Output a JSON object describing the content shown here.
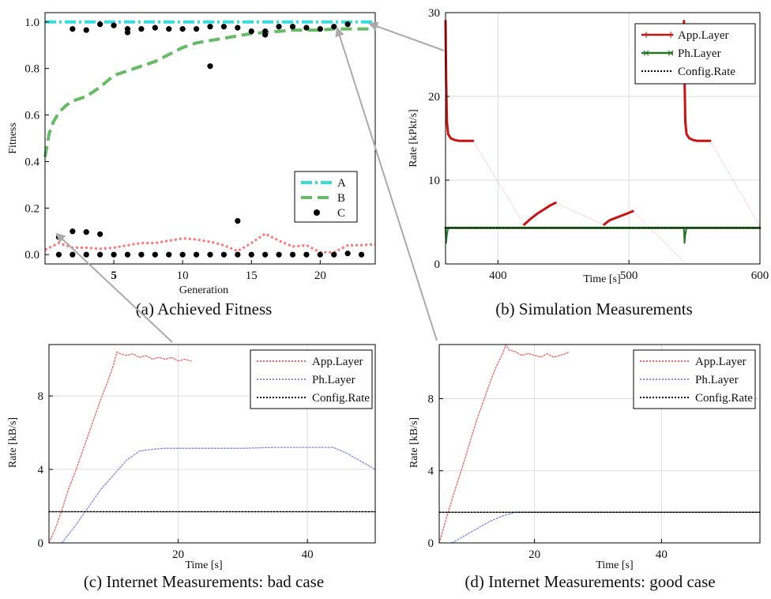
{
  "panels": [
    {
      "caption": "(a) Achieved Fitness",
      "xlabel": "Generation",
      "ylabel": "Fitness",
      "x_ticks": [
        "5",
        "10",
        "15",
        "20"
      ],
      "y_ticks": [
        "0.0",
        "0.2",
        "0.4",
        "0.6",
        "0.8",
        "1.0"
      ],
      "legend": [
        "A",
        "B",
        "C"
      ]
    },
    {
      "caption": "(b) Simulation Measurements",
      "xlabel": "Time [s]",
      "ylabel": "Rate [kPkt/s]",
      "x_ticks": [
        "400",
        "500",
        "600"
      ],
      "y_ticks": [
        "0",
        "10",
        "20",
        "30"
      ],
      "legend": [
        "App.Layer",
        "Ph.Layer",
        "Config.Rate"
      ]
    },
    {
      "caption": "(c) Internet Measurements: bad case",
      "xlabel": "Time [s]",
      "ylabel": "Rate [kB/s]",
      "x_ticks": [
        "20",
        "40"
      ],
      "y_ticks": [
        "0",
        "4",
        "8"
      ],
      "legend": [
        "App.Layer",
        "Ph.Layer",
        "Config.Rate"
      ]
    },
    {
      "caption": "(d) Internet Measurements: good case",
      "xlabel": "Time [s]",
      "ylabel": "Rate [kB/s]",
      "x_ticks": [
        "20",
        "40"
      ],
      "y_ticks": [
        "0",
        "4",
        "8"
      ],
      "legend": [
        "App.Layer",
        "Ph.Layer",
        "Config.Rate"
      ]
    }
  ],
  "colors": {
    "cyan": "#33dddd",
    "green": "#66bb66",
    "black": "#000000",
    "pink": "#ff7777",
    "red": "#cc1111",
    "darkgreen": "#227722",
    "salmon": "#ee6666",
    "blue": "#8888ee",
    "arrow": "#aaaaaa",
    "grid": "#dddddd",
    "tick5": "#777700"
  },
  "chart_data": [
    {
      "type": "line",
      "xlim": [
        0,
        24
      ],
      "ylim": [
        -0.04,
        1.04
      ],
      "series": [
        {
          "name": "A",
          "style": "dash-dot",
          "color": "cyan",
          "x": [
            0,
            24
          ],
          "y": [
            1.0,
            1.0
          ]
        },
        {
          "name": "B",
          "style": "dashed",
          "color": "green",
          "x": [
            0,
            0.3,
            0.6,
            1,
            1.5,
            2,
            3,
            4,
            5,
            6,
            7,
            8,
            9,
            10,
            11,
            12,
            13,
            14,
            15,
            16,
            17,
            18,
            19,
            20,
            21,
            22,
            23,
            24
          ],
          "y": [
            0.42,
            0.52,
            0.57,
            0.61,
            0.64,
            0.66,
            0.68,
            0.72,
            0.77,
            0.79,
            0.81,
            0.83,
            0.86,
            0.89,
            0.91,
            0.92,
            0.93,
            0.94,
            0.95,
            0.955,
            0.96,
            0.965,
            0.965,
            0.965,
            0.97,
            0.97,
            0.97,
            0.97
          ]
        },
        {
          "name": "",
          "style": "dotted",
          "color": "pink",
          "x": [
            0,
            1,
            2,
            3,
            4,
            5,
            6,
            7,
            8,
            9,
            10,
            11,
            12,
            13,
            14,
            15,
            16,
            17,
            18,
            19,
            20,
            21,
            22,
            23,
            24
          ],
          "y": [
            0.02,
            0.05,
            0.03,
            0.03,
            0.025,
            0.03,
            0.04,
            0.05,
            0.05,
            0.06,
            0.07,
            0.065,
            0.055,
            0.04,
            0.015,
            0.05,
            0.09,
            0.06,
            0.035,
            0.04,
            0.01,
            0.01,
            0.04,
            0.04,
            0.045
          ]
        },
        {
          "name": "C",
          "style": "markers",
          "color": "black",
          "x": [
            1,
            2,
            3,
            4,
            2,
            3,
            4,
            5,
            6,
            7,
            8,
            9,
            10,
            11,
            12,
            13,
            14,
            15,
            16,
            17,
            18,
            19,
            20,
            21,
            22,
            1,
            2,
            3,
            4,
            5,
            6,
            7,
            8,
            9,
            10,
            11,
            12,
            13,
            14,
            15,
            16,
            17,
            18,
            19,
            20,
            21,
            22,
            23,
            6,
            12,
            14,
            16
          ],
          "y": [
            0.075,
            0.1,
            0.097,
            0.088,
            0.97,
            0.965,
            0.99,
            0.985,
            0.97,
            0.97,
            0.975,
            0.97,
            0.97,
            0.97,
            0.98,
            0.98,
            0.975,
            0.96,
            0.96,
            0.98,
            0.98,
            0.975,
            0.97,
            0.98,
            0.99,
            0.0,
            0.0,
            0.0,
            0.0,
            0.0,
            0.0,
            0.0,
            0.0,
            0.0,
            0.0,
            0.0,
            0.0,
            0.0,
            0.0,
            0.0,
            0.0,
            0.0,
            0.0,
            0.0,
            0.0,
            0.0,
            0.005,
            0.0,
            0.955,
            0.81,
            0.145,
            0.945
          ]
        }
      ]
    },
    {
      "type": "line",
      "xlim": [
        360,
        600
      ],
      "ylim": [
        0,
        30
      ],
      "series": [
        {
          "name": "App.Layer",
          "color": "red",
          "width": 3,
          "x": [
            360,
            360.5,
            361,
            362,
            364,
            367,
            370,
            375,
            381
          ],
          "y": [
            29,
            22,
            17,
            15.5,
            15,
            14.8,
            14.7,
            14.7,
            14.7
          ]
        },
        {
          "name": "",
          "color": "red",
          "width": 3,
          "x": [
            420,
            425,
            430,
            435,
            440,
            444
          ],
          "y": [
            4.7,
            5.4,
            6,
            6.5,
            7,
            7.3
          ]
        },
        {
          "name": "",
          "color": "red",
          "width": 3,
          "x": [
            481,
            485,
            490,
            495,
            500,
            503
          ],
          "y": [
            4.7,
            5.2,
            5.5,
            5.8,
            6.1,
            6.3
          ]
        },
        {
          "name": "",
          "color": "red",
          "width": 3,
          "x": [
            542,
            542.5,
            543,
            544,
            546,
            549,
            552,
            556,
            562
          ],
          "y": [
            29,
            22,
            17,
            15.5,
            15,
            14.8,
            14.7,
            14.7,
            14.7
          ]
        },
        {
          "name": "",
          "color": "red",
          "width": 1,
          "opacity": 0.15,
          "x": [
            381,
            420
          ],
          "y": [
            14.7,
            4.7
          ]
        },
        {
          "name": "",
          "color": "red",
          "width": 1,
          "opacity": 0.15,
          "x": [
            444,
            481
          ],
          "y": [
            7.3,
            4.7
          ]
        },
        {
          "name": "",
          "color": "red",
          "width": 1,
          "opacity": 0.15,
          "x": [
            503,
            542
          ],
          "y": [
            6.3,
            0.3
          ]
        },
        {
          "name": "",
          "color": "red",
          "width": 1,
          "opacity": 0.15,
          "x": [
            562,
            600
          ],
          "y": [
            14.7,
            4.5
          ]
        },
        {
          "name": "Ph.Layer",
          "color": "darkgreen",
          "width": 3,
          "x": [
            360,
            600
          ],
          "y": [
            4.3,
            4.3
          ]
        },
        {
          "name": "",
          "color": "darkgreen",
          "width": 2,
          "x": [
            360,
            360.4,
            361,
            362
          ],
          "y": [
            4.3,
            2.5,
            3.5,
            4.3
          ]
        },
        {
          "name": "",
          "color": "darkgreen",
          "width": 2,
          "x": [
            542,
            542.4,
            543,
            544
          ],
          "y": [
            4.3,
            2.5,
            3.5,
            4.3
          ]
        },
        {
          "name": "Config.Rate",
          "color": "black",
          "width": 1.3,
          "style": "dotted",
          "x": [
            360,
            600
          ],
          "y": [
            4.3,
            4.3
          ]
        }
      ]
    },
    {
      "type": "line",
      "xlim": [
        0,
        50.5
      ],
      "ylim": [
        0,
        10.8
      ],
      "series": [
        {
          "name": "App.Layer",
          "color": "salmon",
          "width": 1.3,
          "style": "dotted",
          "x": [
            0,
            1,
            2,
            3,
            4,
            5,
            6,
            7,
            8,
            9,
            10,
            10.5,
            11,
            12,
            13,
            14,
            15,
            16,
            17,
            18,
            19,
            20,
            21,
            22
          ],
          "y": [
            0,
            0.8,
            1.8,
            2.9,
            3.8,
            4.8,
            5.8,
            6.8,
            7.8,
            8.7,
            9.7,
            10.4,
            10.3,
            10.2,
            10.3,
            10.1,
            10.2,
            10.0,
            10.1,
            10.0,
            10.1,
            9.9,
            10.0,
            9.9
          ]
        },
        {
          "name": "Ph.Layer",
          "color": "blue",
          "width": 1.3,
          "style": "dotted",
          "x": [
            2,
            4,
            6,
            8,
            10,
            12,
            14,
            16,
            18,
            20,
            25,
            30,
            35,
            40,
            44,
            46,
            48,
            50.5
          ],
          "y": [
            0,
            0.9,
            1.9,
            2.9,
            3.7,
            4.5,
            5.0,
            5.1,
            5.15,
            5.15,
            5.15,
            5.15,
            5.2,
            5.2,
            5.2,
            4.9,
            4.5,
            4.0
          ]
        },
        {
          "name": "Config.Rate",
          "color": "black",
          "width": 1.5,
          "style": "dotted",
          "x": [
            0,
            50.5
          ],
          "y": [
            1.7,
            1.7
          ]
        }
      ]
    },
    {
      "type": "line",
      "xlim": [
        5,
        55.5
      ],
      "ylim": [
        0,
        11.0
      ],
      "series": [
        {
          "name": "App.Layer",
          "color": "salmon",
          "width": 1.3,
          "style": "dotted",
          "x": [
            5,
            6,
            7,
            8,
            9,
            10,
            11,
            12,
            13,
            14,
            15,
            15.5,
            16,
            17,
            18,
            19,
            20,
            21,
            22,
            23,
            24,
            25,
            25.5
          ],
          "y": [
            0,
            1.2,
            2.4,
            3.5,
            4.6,
            5.8,
            6.9,
            7.9,
            8.9,
            9.8,
            10.5,
            11.0,
            10.7,
            10.6,
            10.4,
            10.5,
            10.4,
            10.3,
            10.5,
            10.3,
            10.4,
            10.5,
            10.6
          ]
        },
        {
          "name": "Ph.Layer",
          "color": "blue",
          "width": 1.3,
          "style": "dotted",
          "x": [
            7,
            9,
            11,
            13,
            15,
            17,
            20,
            25,
            30,
            35,
            40,
            45,
            50,
            55.5
          ],
          "y": [
            0,
            0.4,
            0.8,
            1.2,
            1.5,
            1.7,
            1.7,
            1.7,
            1.7,
            1.7,
            1.7,
            1.7,
            1.7,
            1.7
          ]
        },
        {
          "name": "Config.Rate",
          "color": "black",
          "width": 1.5,
          "style": "dotted",
          "x": [
            5,
            55.5
          ],
          "y": [
            1.7,
            1.7
          ]
        }
      ]
    }
  ]
}
